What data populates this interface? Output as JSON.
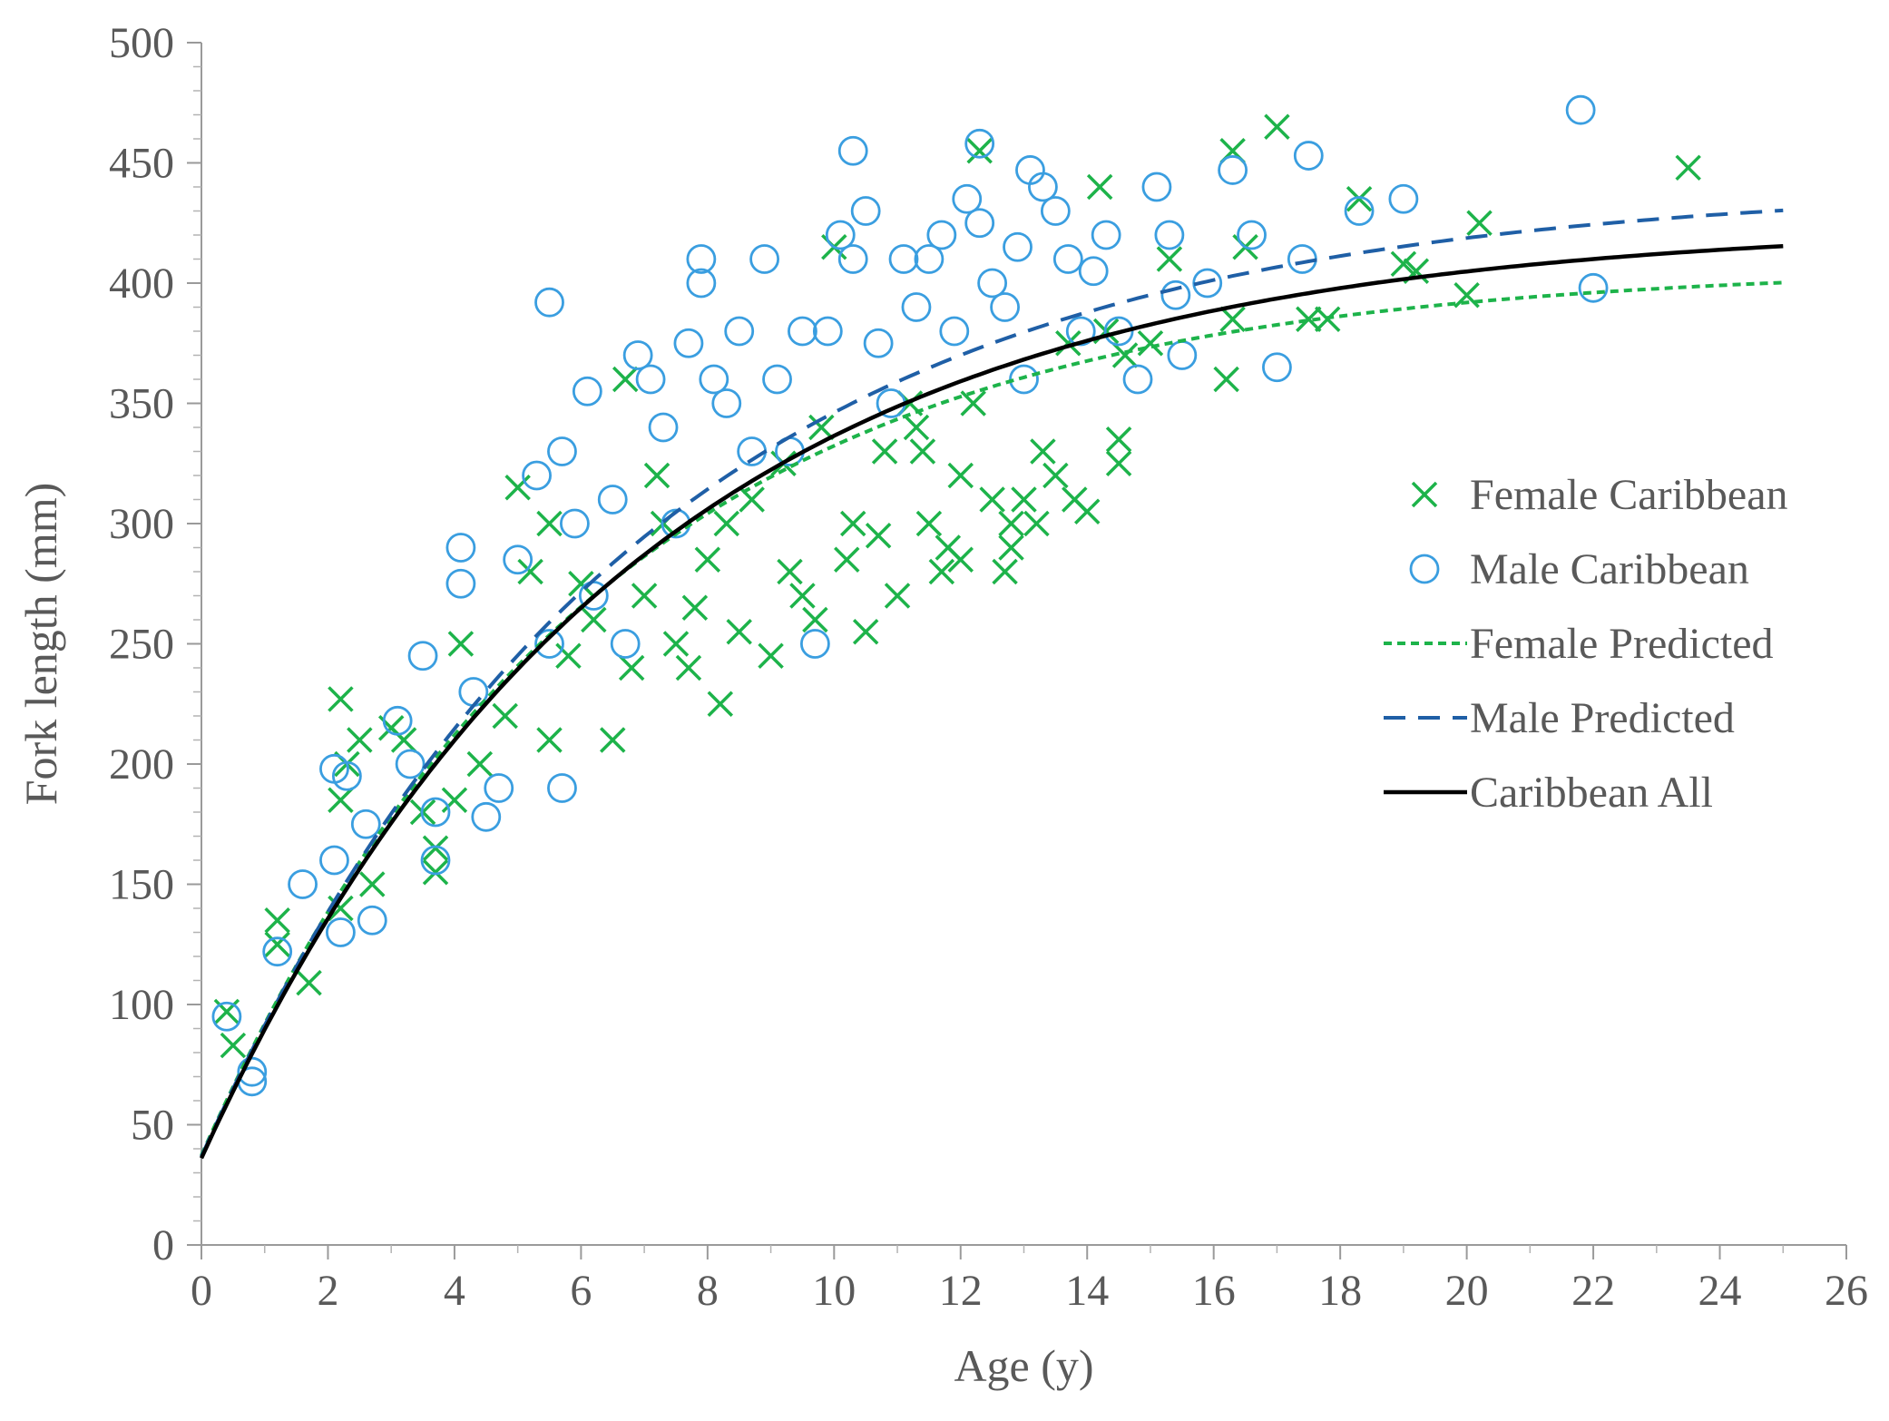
{
  "chart_data": {
    "type": "scatter",
    "title": "",
    "xlabel": "Age (y)",
    "ylabel": "Fork length (mm)",
    "xlim": [
      0,
      26
    ],
    "ylim": [
      0,
      500
    ],
    "x_ticks": [
      "0",
      "2",
      "4",
      "6",
      "8",
      "10",
      "12",
      "14",
      "16",
      "18",
      "20",
      "22",
      "24",
      "26"
    ],
    "y_ticks": [
      "0",
      "50",
      "100",
      "150",
      "200",
      "250",
      "300",
      "350",
      "400",
      "450",
      "500"
    ],
    "x_tick_values": [
      0,
      2,
      4,
      6,
      8,
      10,
      12,
      14,
      16,
      18,
      20,
      22,
      24,
      26
    ],
    "y_tick_values": [
      0,
      50,
      100,
      150,
      200,
      250,
      300,
      350,
      400,
      450,
      500
    ],
    "legend_position": "right",
    "colors": {
      "female": "#1db34a",
      "male": "#3a9ee0",
      "male_line": "#1f5fa6",
      "all_line": "#000000",
      "axis": "#9a9a9a",
      "text": "#595959"
    },
    "series": [
      {
        "name": "Female Caribbean",
        "kind": "scatter",
        "marker": "x",
        "x": [
          0.4,
          0.5,
          1.2,
          1.2,
          1.7,
          2.2,
          2.2,
          2.2,
          2.3,
          2.5,
          2.7,
          3.0,
          3.2,
          3.5,
          3.7,
          3.7,
          4.0,
          4.1,
          4.4,
          4.8,
          5.0,
          5.2,
          5.5,
          5.5,
          5.8,
          6.0,
          6.2,
          6.5,
          6.7,
          6.8,
          7.0,
          7.2,
          7.3,
          7.5,
          7.7,
          7.8,
          8.0,
          8.2,
          8.3,
          8.5,
          8.7,
          9.0,
          9.2,
          9.3,
          9.5,
          9.7,
          9.8,
          10.0,
          10.2,
          10.3,
          10.5,
          10.7,
          10.8,
          11.0,
          11.2,
          11.3,
          11.5,
          11.7,
          11.8,
          12.0,
          12.0,
          12.2,
          12.3,
          12.5,
          12.7,
          12.8,
          13.0,
          13.2,
          13.3,
          13.5,
          13.7,
          13.8,
          14.0,
          14.2,
          14.3,
          14.5,
          14.5,
          15.0,
          15.3,
          16.3,
          16.3,
          16.5,
          17.0,
          17.5,
          17.8,
          18.3,
          19.0,
          19.2,
          20.0,
          20.2,
          23.5,
          16.2,
          14.6,
          12.8,
          11.4
        ],
        "y": [
          97,
          83,
          135,
          125,
          109,
          227,
          185,
          140,
          200,
          210,
          150,
          215,
          210,
          180,
          155,
          165,
          185,
          250,
          200,
          220,
          315,
          280,
          210,
          300,
          245,
          275,
          260,
          210,
          360,
          240,
          270,
          320,
          300,
          250,
          240,
          265,
          285,
          225,
          300,
          255,
          310,
          245,
          325,
          280,
          270,
          260,
          340,
          415,
          285,
          300,
          255,
          295,
          330,
          270,
          350,
          340,
          300,
          280,
          290,
          320,
          285,
          350,
          455,
          310,
          280,
          290,
          310,
          300,
          330,
          320,
          375,
          310,
          305,
          440,
          380,
          325,
          335,
          375,
          410,
          455,
          385,
          415,
          465,
          385,
          385,
          435,
          408,
          405,
          395,
          425,
          448,
          360,
          370,
          300,
          330
        ]
      },
      {
        "name": "Male Caribbean",
        "kind": "scatter",
        "marker": "o",
        "x": [
          0.4,
          0.8,
          0.8,
          1.2,
          1.6,
          2.1,
          2.1,
          2.2,
          2.3,
          2.6,
          2.7,
          3.1,
          3.3,
          3.5,
          3.7,
          3.7,
          4.1,
          4.1,
          4.3,
          4.5,
          4.7,
          5.0,
          5.3,
          5.5,
          5.7,
          5.7,
          5.9,
          6.1,
          6.2,
          6.5,
          6.7,
          6.9,
          7.1,
          7.3,
          7.5,
          7.7,
          7.9,
          8.1,
          8.3,
          8.5,
          8.7,
          8.9,
          9.1,
          9.3,
          9.5,
          9.7,
          9.9,
          10.1,
          10.3,
          10.5,
          10.7,
          10.9,
          11.1,
          11.3,
          11.5,
          11.7,
          11.9,
          12.1,
          12.3,
          12.3,
          12.5,
          12.7,
          12.9,
          13.1,
          13.3,
          13.5,
          13.7,
          13.9,
          14.1,
          14.3,
          14.5,
          14.8,
          15.1,
          15.3,
          15.5,
          15.9,
          16.3,
          16.6,
          17.0,
          17.4,
          17.5,
          18.3,
          19.0,
          21.8,
          22.0,
          10.3,
          5.5,
          7.9,
          13.0,
          15.4
        ],
        "y": [
          95,
          72,
          68,
          122,
          150,
          198,
          160,
          130,
          195,
          175,
          135,
          218,
          200,
          245,
          180,
          160,
          290,
          275,
          230,
          178,
          190,
          285,
          320,
          392,
          330,
          190,
          300,
          355,
          270,
          310,
          250,
          370,
          360,
          340,
          300,
          375,
          410,
          360,
          350,
          380,
          330,
          410,
          360,
          330,
          380,
          250,
          380,
          420,
          455,
          430,
          375,
          350,
          410,
          390,
          410,
          420,
          380,
          435,
          458,
          425,
          400,
          390,
          415,
          447,
          440,
          430,
          410,
          380,
          405,
          420,
          380,
          360,
          440,
          420,
          370,
          400,
          447,
          420,
          365,
          410,
          453,
          430,
          435,
          472,
          398,
          410,
          250,
          400,
          360,
          395
        ]
      },
      {
        "name": "Female Predicted",
        "kind": "line",
        "style": "dotted",
        "linf": 407.0,
        "k": 0.16,
        "t0": -0.6
      },
      {
        "name": "Male Predicted",
        "kind": "line",
        "style": "dashed",
        "linf": 441.0,
        "k": 0.145,
        "t0": -0.6
      },
      {
        "name": "Caribbean All",
        "kind": "line",
        "style": "solid",
        "linf": 425.0,
        "k": 0.148,
        "t0": -0.6
      }
    ]
  }
}
